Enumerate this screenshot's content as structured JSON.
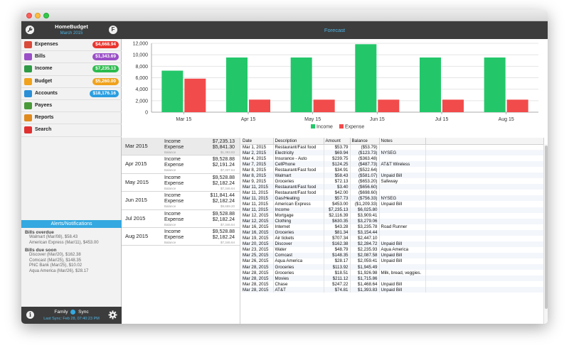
{
  "sidebar": {
    "app_title": "HomeBudget",
    "month": "March 2015",
    "left_button": "tools-icon",
    "right_button_label": "F",
    "nav": [
      {
        "label": "Expenses",
        "badge": "$4,668.94",
        "badge_color": "#e8352f",
        "icon": "wallet-icon",
        "icon_color": "#d94a3a"
      },
      {
        "label": "Bills",
        "badge": "$1,343.69",
        "badge_color": "#9a4fc7",
        "icon": "calendar-icon",
        "icon_color": "#9a4fc7"
      },
      {
        "label": "Income",
        "badge": "$7,235.13",
        "badge_color": "#2dbb4e",
        "icon": "money-bag-icon",
        "icon_color": "#2e9a45"
      },
      {
        "label": "Budget",
        "badge": "$5,260.00",
        "badge_color": "#f0a21c",
        "icon": "folder-icon",
        "icon_color": "#f0a21c"
      },
      {
        "label": "Accounts",
        "badge": "$18,176.16",
        "badge_color": "#2a9ee0",
        "icon": "monitor-icon",
        "icon_color": "#2a8fd6"
      },
      {
        "label": "Payees",
        "badge": "",
        "badge_color": "",
        "icon": "people-icon",
        "icon_color": "#4a9a3a"
      },
      {
        "label": "Reports",
        "badge": "",
        "badge_color": "",
        "icon": "reports-icon",
        "icon_color": "#e08a1e"
      },
      {
        "label": "Search",
        "badge": "",
        "badge_color": "",
        "icon": "search-icon",
        "icon_color": "#e03030"
      }
    ],
    "alerts": {
      "title": "Alerts/Notifications",
      "overdue_title": "Bills overdue",
      "overdue": [
        "Walmart (Mar/08), $58.43",
        "American Express (Mar/11), $453.00"
      ],
      "due_title": "Bills due soon",
      "due": [
        "Discover (Mar/20), $162.38",
        "Comcast (Mar/25), $148.35",
        "PNC Bank (Mar/25), $10.02",
        "Aqua America (Mar/26), $28.17"
      ]
    },
    "footer": {
      "family_label": "Family",
      "sync_label": "Sync",
      "last_sync": "Last Sync: Feb 28, 07:40:23 PM",
      "info_icon": "info-icon",
      "settings_icon": "gear-icon"
    }
  },
  "main": {
    "title": "Forecast",
    "months": [
      {
        "name": "Mar 2015",
        "income": "$7,235.13",
        "expense": "$5,841.30",
        "balance": "$1,393.83"
      },
      {
        "name": "Apr 2015",
        "income": "$9,528.88",
        "expense": "$2,191.24",
        "balance": "$7,337.64"
      },
      {
        "name": "May 2015",
        "income": "$9,528.88",
        "expense": "$2,182.24",
        "balance": "$7,346.64"
      },
      {
        "name": "Jun 2015",
        "income": "$11,841.44",
        "expense": "$2,182.24",
        "balance": "$9,659.20"
      },
      {
        "name": "Jul 2015",
        "income": "$9,528.88",
        "expense": "$2,182.24",
        "balance": "$7,346.64"
      },
      {
        "name": "Aug 2015",
        "income": "$9,528.88",
        "expense": "$2,182.24",
        "balance": "$7,346.64"
      }
    ],
    "month_labels": {
      "income": "Income",
      "expense": "Expense",
      "balance": "Balance"
    },
    "table": {
      "columns": [
        "Date",
        "Description",
        "Amount",
        "Balance",
        "Notes"
      ],
      "rows": [
        [
          "Mar 1, 2015",
          "Restaurant/Fast food",
          "$53.79",
          "($53.79)",
          ""
        ],
        [
          "Mar 2, 2015",
          "Electricity",
          "$69.94",
          "($123.73)",
          "NYSEG"
        ],
        [
          "Mar 4, 2015",
          "Insurance - Auto",
          "$239.75",
          "($363.48)",
          ""
        ],
        [
          "Mar 7, 2015",
          "CellPhone",
          "$124.25",
          "($487.73)",
          "AT&T Wireless"
        ],
        [
          "Mar 8, 2015",
          "Restaurant/Fast food",
          "$34.91",
          "($522.64)",
          ""
        ],
        [
          "Mar 8, 2015",
          "Walmart",
          "$58.43",
          "($581.07)",
          "Unpaid Bill"
        ],
        [
          "Mar 9, 2015",
          "Groceries",
          "$72.13",
          "($653.20)",
          "Safeway"
        ],
        [
          "Mar 11, 2015",
          "Restaurant/Fast food",
          "$3.40",
          "($656.60)",
          ""
        ],
        [
          "Mar 11, 2015",
          "Restaurant/Fast food",
          "$42.00",
          "($698.60)",
          ""
        ],
        [
          "Mar 11, 2015",
          "Gas/Heating",
          "$57.73",
          "($756.33)",
          "NYSEG"
        ],
        [
          "Mar 11, 2015",
          "American Express",
          "$453.00",
          "($1,209.33)",
          "Unpaid Bill"
        ],
        [
          "Mar 11, 2015",
          "Income",
          "$7,235.13",
          "$6,025.80",
          ""
        ],
        [
          "Mar 12, 2015",
          "Mortgage",
          "$2,116.39",
          "$3,909.41",
          ""
        ],
        [
          "Mar 12, 2015",
          "Clothing",
          "$630.35",
          "$3,279.06",
          ""
        ],
        [
          "Mar 16, 2015",
          "Internet",
          "$43.28",
          "$3,235.78",
          "Road Runner"
        ],
        [
          "Mar 16, 2015",
          "Groceries",
          "$81.34",
          "$3,154.44",
          ""
        ],
        [
          "Mar 19, 2015",
          "Air tickets",
          "$707.34",
          "$2,447.10",
          ""
        ],
        [
          "Mar 20, 2015",
          "Discover",
          "$162.38",
          "$2,284.72",
          "Unpaid Bill"
        ],
        [
          "Mar 23, 2015",
          "Water",
          "$48.79",
          "$2,235.93",
          "Aqua America"
        ],
        [
          "Mar 25, 2015",
          "Comcast",
          "$148.35",
          "$2,087.58",
          "Unpaid Bill"
        ],
        [
          "Mar 26, 2015",
          "Aqua America",
          "$28.17",
          "$2,059.41",
          "Unpaid Bill"
        ],
        [
          "Mar 28, 2015",
          "Groceries",
          "$113.92",
          "$1,945.49",
          ""
        ],
        [
          "Mar 28, 2015",
          "Groceries",
          "$18.51",
          "$1,926.98",
          "Milk, bread, veggies."
        ],
        [
          "Mar 28, 2015",
          "Movies",
          "$211.12",
          "$1,715.86",
          ""
        ],
        [
          "Mar 28, 2015",
          "Chase",
          "$247.22",
          "$1,468.64",
          "Unpaid Bill"
        ],
        [
          "Mar 28, 2015",
          "AT&T",
          "$74.81",
          "$1,393.83",
          "Unpaid Bill"
        ]
      ]
    }
  },
  "chart_data": {
    "type": "bar",
    "categories": [
      "Mar 15",
      "Apr 15",
      "May 15",
      "Jun 15",
      "Jul 15",
      "Aug 15"
    ],
    "series": [
      {
        "name": "Income",
        "color": "#23c76a",
        "values": [
          7235.13,
          9528.88,
          9528.88,
          11841.44,
          9528.88,
          9528.88
        ]
      },
      {
        "name": "Expense",
        "color": "#f24b4b",
        "values": [
          5841.3,
          2191.24,
          2182.24,
          2182.24,
          2182.24,
          2182.24
        ]
      }
    ],
    "ylim": [
      0,
      12000
    ],
    "yticks": [
      0,
      2000,
      4000,
      6000,
      8000,
      10000,
      12000
    ],
    "ytick_labels": [
      "0",
      "2,000",
      "4,000",
      "6,000",
      "8,000",
      "10,000",
      "12,000"
    ],
    "grid": true,
    "legend": "bottom-center"
  }
}
